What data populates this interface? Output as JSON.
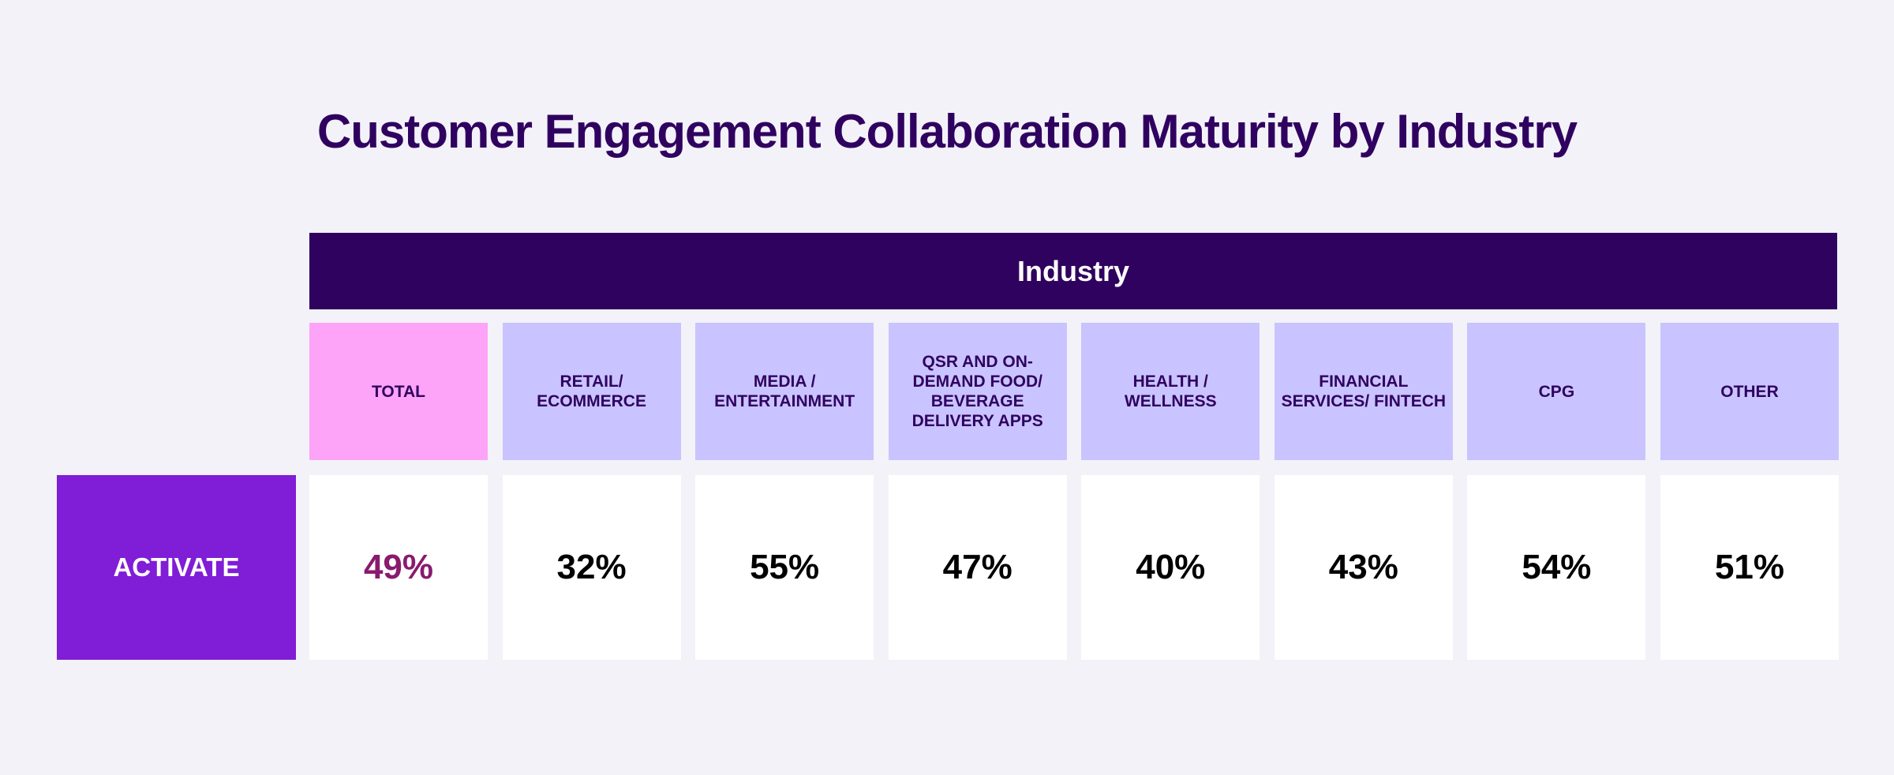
{
  "chart_data": {
    "type": "table",
    "title": "Customer Engagement Collaboration Maturity by Industry",
    "column_group_label": "Industry",
    "categories": [
      "TOTAL",
      "RETAIL/ ECOMMERCE",
      "MEDIA / ENTERTAINMENT",
      "QSR AND ON-DEMAND FOOD/ BEVERAGE DELIVERY APPS",
      "HEALTH / WELLNESS",
      "FINANCIAL SERVICES/ FINTECH",
      "CPG",
      "OTHER"
    ],
    "rows": [
      {
        "label": "ACTIVATE",
        "values": [
          "49%",
          "32%",
          "55%",
          "47%",
          "40%",
          "43%",
          "54%",
          "51%"
        ]
      }
    ],
    "colors": {
      "title": "#300260",
      "header_bg": "#300260",
      "total_header": "#fda4f8",
      "category_header": "#c9c4ff",
      "row_label_bg": "#801dd6",
      "total_value": "#8a1a6e",
      "background": "#f3f2f8"
    }
  }
}
